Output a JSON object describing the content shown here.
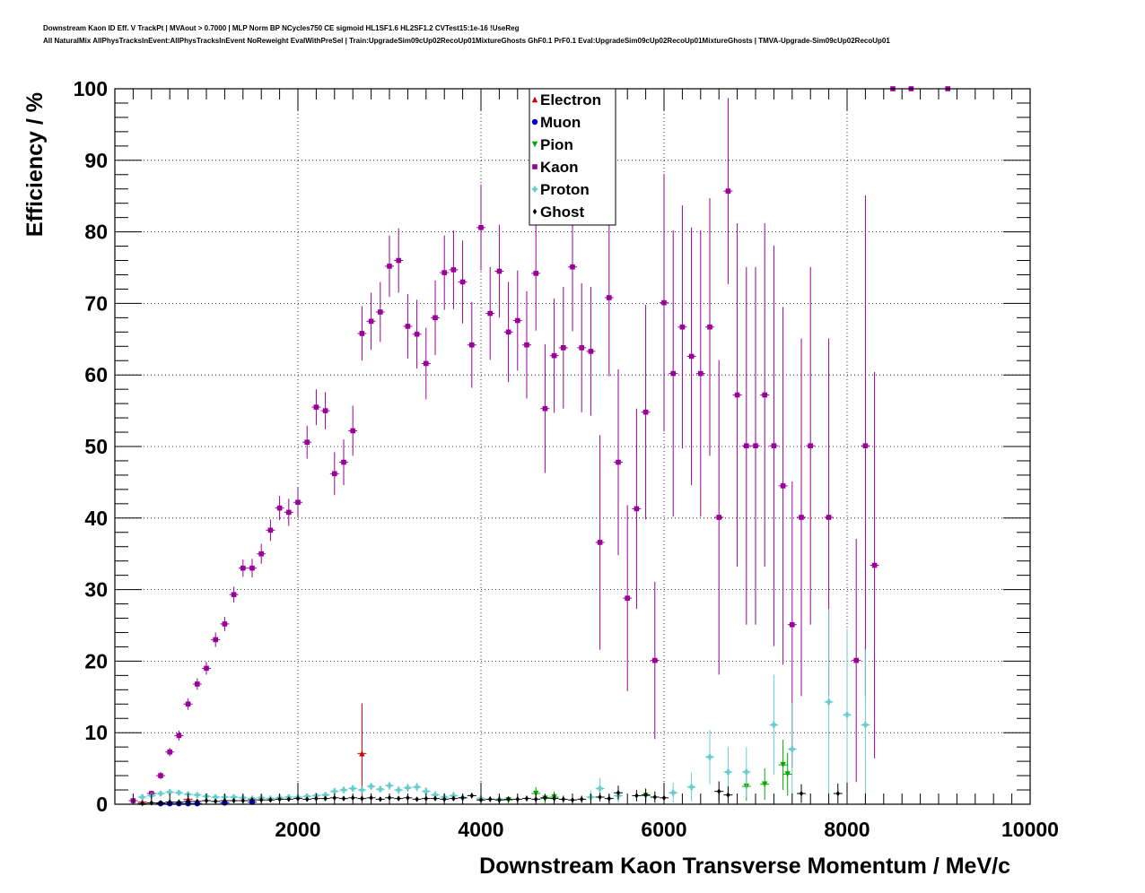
{
  "title_line_1": "Downstream Kaon ID Eff. V TrackPt | MVAout > 0.7000 | MLP Norm BP NCycles750 CE sigmoid HL1SF1.6 HL2SF1.2 CVTest15:1e-16 !UseReg",
  "title_line_2": "All NaturalMix AllPhysTracksInEvent:AllPhysTracksInEvent NoReweight EvalWithPreSel | Train:UpgradeSim09cUp02RecoUp01MixtureGhosts GhF0.1 PrF0.1 Eval:UpgradeSim09cUp02RecoUp01MixtureGhosts | TMVA-Upgrade-Sim09cUp02RecoUp01",
  "chart_data": {
    "type": "scatter",
    "xlabel": "Downstream Kaon Transverse Momentum / MeV/c",
    "ylabel": "Efficiency / %",
    "xlim": [
      0,
      10000
    ],
    "ylim": [
      0,
      100
    ],
    "x_ticks": [
      2000,
      4000,
      6000,
      8000,
      10000
    ],
    "y_ticks": [
      0,
      10,
      20,
      30,
      40,
      50,
      60,
      70,
      80,
      90,
      100
    ],
    "grid": true,
    "legend_position": "top-center",
    "series": [
      {
        "name": "Electron",
        "color": "#cc0000",
        "marker": "triangle-up",
        "points": [
          [
            300,
            0.3,
            0.3
          ],
          [
            800,
            0.7,
            0.6
          ],
          [
            2700,
            7.1,
            7.0
          ]
        ]
      },
      {
        "name": "Muon",
        "color": "#0000dd",
        "marker": "circle",
        "points": [
          [
            500,
            0.1,
            0.1
          ],
          [
            600,
            0.1,
            0.1
          ],
          [
            700,
            0.1,
            0.1
          ],
          [
            800,
            0.1,
            0.1
          ],
          [
            900,
            0.1,
            0.1
          ],
          [
            1200,
            0.2,
            0.2
          ],
          [
            1500,
            0.3,
            0.3
          ]
        ]
      },
      {
        "name": "Pion",
        "color": "#00aa00",
        "marker": "triangle-down",
        "points": [
          [
            4300,
            0.6,
            0.5
          ],
          [
            4600,
            1.5,
            0.9
          ],
          [
            4700,
            0.8,
            0.7
          ],
          [
            4800,
            1.0,
            0.8
          ],
          [
            5800,
            1.2,
            0.9
          ],
          [
            6900,
            2.5,
            2.0
          ],
          [
            7100,
            2.8,
            2.2
          ],
          [
            7300,
            5.5,
            3.5
          ],
          [
            7350,
            4.2,
            3.0
          ]
        ]
      },
      {
        "name": "Kaon",
        "color": "#990099",
        "marker": "square",
        "points": [
          [
            200,
            0.5,
            0.3
          ],
          [
            400,
            1.5,
            0.4
          ],
          [
            500,
            4.0,
            0.5
          ],
          [
            600,
            7.3,
            0.6
          ],
          [
            700,
            9.6,
            0.7
          ],
          [
            800,
            14.0,
            0.8
          ],
          [
            900,
            16.8,
            0.8
          ],
          [
            1000,
            19.0,
            0.9
          ],
          [
            1100,
            23.0,
            1.0
          ],
          [
            1200,
            25.2,
            1.0
          ],
          [
            1300,
            29.3,
            1.1
          ],
          [
            1400,
            33.0,
            1.2
          ],
          [
            1500,
            33.0,
            1.3
          ],
          [
            1600,
            35.0,
            1.4
          ],
          [
            1700,
            38.3,
            1.5
          ],
          [
            1800,
            41.4,
            1.7
          ],
          [
            1900,
            40.8,
            1.9
          ],
          [
            2000,
            42.2,
            2.1
          ],
          [
            2100,
            50.6,
            2.3
          ],
          [
            2200,
            55.5,
            2.5
          ],
          [
            2300,
            55.0,
            2.6
          ],
          [
            2400,
            46.2,
            3.0
          ],
          [
            2500,
            47.8,
            3.2
          ],
          [
            2600,
            52.2,
            3.5
          ],
          [
            2700,
            65.8,
            3.8
          ],
          [
            2800,
            67.5,
            4.0
          ],
          [
            2900,
            68.8,
            4.2
          ],
          [
            3000,
            75.2,
            4.3
          ],
          [
            3100,
            76.0,
            4.5
          ],
          [
            3200,
            66.8,
            4.5
          ],
          [
            3300,
            65.7,
            4.8
          ],
          [
            3400,
            61.6,
            5.0
          ],
          [
            3500,
            68.0,
            5.2
          ],
          [
            3600,
            74.3,
            5.2
          ],
          [
            3700,
            74.7,
            5.5
          ],
          [
            3800,
            73.0,
            5.8
          ],
          [
            3900,
            64.2,
            6.0
          ],
          [
            4000,
            80.6,
            6.0
          ],
          [
            4100,
            68.6,
            6.5
          ],
          [
            4200,
            74.5,
            6.5
          ],
          [
            4300,
            66.0,
            7.0
          ],
          [
            4400,
            67.6,
            7.0
          ],
          [
            4500,
            64.2,
            7.5
          ],
          [
            4600,
            74.2,
            8.0
          ],
          [
            4700,
            55.3,
            9.0
          ],
          [
            4800,
            62.7,
            8.0
          ],
          [
            4900,
            63.8,
            8.5
          ],
          [
            5000,
            75.1,
            9.0
          ],
          [
            5100,
            63.8,
            9.0
          ],
          [
            5200,
            63.3,
            9.0
          ],
          [
            5300,
            36.6,
            15.0
          ],
          [
            5400,
            70.8,
            11.0
          ],
          [
            5500,
            47.8,
            13.0
          ],
          [
            5600,
            28.8,
            13.0
          ],
          [
            5700,
            41.3,
            14.0
          ],
          [
            5800,
            54.8,
            15.0
          ],
          [
            5900,
            20.1,
            11.0
          ],
          [
            6000,
            70.1,
            18.0
          ],
          [
            6100,
            60.2,
            20.0
          ],
          [
            6200,
            66.7,
            17.0
          ],
          [
            6300,
            62.6,
            18.0
          ],
          [
            6400,
            60.2,
            20.0
          ],
          [
            6500,
            66.7,
            18.0
          ],
          [
            6600,
            40.1,
            22.0
          ],
          [
            6700,
            85.7,
            13.0
          ],
          [
            6800,
            57.2,
            24.0
          ],
          [
            6900,
            50.1,
            25.0
          ],
          [
            7000,
            50.1,
            25.0
          ],
          [
            7100,
            57.2,
            24.0
          ],
          [
            7200,
            50.1,
            28.0
          ],
          [
            7300,
            44.5,
            25.0
          ],
          [
            7400,
            25.1,
            20.0
          ],
          [
            7500,
            40.1,
            25.0
          ],
          [
            7600,
            50.1,
            25.0
          ],
          [
            7800,
            40.1,
            25.0
          ],
          [
            8100,
            20.1,
            17.0
          ],
          [
            8200,
            50.1,
            35.0
          ],
          [
            8300,
            33.4,
            27.0
          ],
          [
            8500,
            100,
            0
          ],
          [
            8700,
            100,
            0
          ],
          [
            9100,
            100,
            0
          ]
        ]
      },
      {
        "name": "Proton",
        "color": "#66cccc",
        "marker": "cross",
        "points": [
          [
            300,
            1.0,
            0.3
          ],
          [
            400,
            1.2,
            0.3
          ],
          [
            500,
            1.5,
            0.3
          ],
          [
            600,
            1.7,
            0.3
          ],
          [
            700,
            1.6,
            0.3
          ],
          [
            800,
            1.4,
            0.3
          ],
          [
            900,
            1.3,
            0.3
          ],
          [
            1000,
            1.1,
            0.3
          ],
          [
            1100,
            1.0,
            0.3
          ],
          [
            1200,
            1.0,
            0.3
          ],
          [
            1300,
            1.0,
            0.3
          ],
          [
            1400,
            0.9,
            0.3
          ],
          [
            1500,
            0.8,
            0.3
          ],
          [
            1600,
            0.9,
            0.3
          ],
          [
            1700,
            0.8,
            0.3
          ],
          [
            1800,
            0.9,
            0.3
          ],
          [
            1900,
            1.0,
            0.4
          ],
          [
            2000,
            1.0,
            0.4
          ],
          [
            2100,
            1.1,
            0.4
          ],
          [
            2200,
            1.2,
            0.4
          ],
          [
            2300,
            1.3,
            0.4
          ],
          [
            2400,
            1.8,
            0.5
          ],
          [
            2500,
            2.0,
            0.5
          ],
          [
            2600,
            2.2,
            0.5
          ],
          [
            2700,
            2.0,
            0.5
          ],
          [
            2800,
            2.5,
            0.5
          ],
          [
            2900,
            2.1,
            0.5
          ],
          [
            3000,
            2.6,
            0.6
          ],
          [
            3100,
            2.0,
            0.6
          ],
          [
            3200,
            2.3,
            0.6
          ],
          [
            3300,
            2.4,
            0.6
          ],
          [
            3400,
            1.8,
            0.6
          ],
          [
            3500,
            1.3,
            0.6
          ],
          [
            3600,
            1.0,
            0.6
          ],
          [
            3700,
            1.2,
            0.6
          ],
          [
            3800,
            0.9,
            0.6
          ],
          [
            4000,
            0.8,
            0.6
          ],
          [
            4200,
            0.7,
            0.6
          ],
          [
            5200,
            1.0,
            0.9
          ],
          [
            5300,
            2.2,
            1.5
          ],
          [
            5500,
            1.2,
            1.0
          ],
          [
            6100,
            1.6,
            1.4
          ],
          [
            6300,
            2.4,
            2.0
          ],
          [
            6500,
            6.6,
            3.8
          ],
          [
            6700,
            4.5,
            3.5
          ],
          [
            6900,
            4.5,
            3.5
          ],
          [
            7200,
            11.1,
            7.0
          ],
          [
            7400,
            7.7,
            6.5
          ],
          [
            7800,
            14.3,
            13.0
          ],
          [
            8000,
            12.5,
            12.0
          ],
          [
            8200,
            11.1,
            10.5
          ]
        ]
      },
      {
        "name": "Ghost",
        "color": "#000000",
        "marker": "diamond",
        "points": [
          [
            300,
            0.1,
            0.1
          ],
          [
            400,
            0.2,
            0.1
          ],
          [
            500,
            0.2,
            0.1
          ],
          [
            600,
            0.3,
            0.1
          ],
          [
            700,
            0.3,
            0.1
          ],
          [
            800,
            0.4,
            0.1
          ],
          [
            900,
            0.4,
            0.1
          ],
          [
            1000,
            0.5,
            0.1
          ],
          [
            1100,
            0.4,
            0.1
          ],
          [
            1200,
            0.5,
            0.1
          ],
          [
            1300,
            0.5,
            0.1
          ],
          [
            1400,
            0.5,
            0.1
          ],
          [
            1500,
            0.6,
            0.1
          ],
          [
            1600,
            0.6,
            0.2
          ],
          [
            1700,
            0.6,
            0.2
          ],
          [
            1800,
            0.7,
            0.2
          ],
          [
            1900,
            0.7,
            0.2
          ],
          [
            2000,
            0.8,
            0.2
          ],
          [
            2100,
            0.7,
            0.2
          ],
          [
            2200,
            0.8,
            0.2
          ],
          [
            2300,
            0.8,
            0.2
          ],
          [
            2400,
            0.9,
            0.2
          ],
          [
            2500,
            0.8,
            0.2
          ],
          [
            2600,
            0.9,
            0.2
          ],
          [
            2700,
            0.8,
            0.3
          ],
          [
            2800,
            0.9,
            0.3
          ],
          [
            2900,
            0.7,
            0.3
          ],
          [
            3000,
            0.9,
            0.3
          ],
          [
            3100,
            0.8,
            0.3
          ],
          [
            3200,
            0.9,
            0.3
          ],
          [
            3300,
            0.7,
            0.3
          ],
          [
            3400,
            0.8,
            0.3
          ],
          [
            3500,
            0.8,
            0.3
          ],
          [
            3600,
            0.7,
            0.3
          ],
          [
            3700,
            0.8,
            0.3
          ],
          [
            3800,
            0.9,
            0.4
          ],
          [
            3900,
            1.2,
            0.4
          ],
          [
            4000,
            0.6,
            0.4
          ],
          [
            4100,
            0.7,
            0.4
          ],
          [
            4200,
            0.6,
            0.4
          ],
          [
            4300,
            0.7,
            0.4
          ],
          [
            4400,
            0.7,
            0.4
          ],
          [
            4500,
            0.8,
            0.4
          ],
          [
            4600,
            0.7,
            0.4
          ],
          [
            4700,
            0.9,
            0.5
          ],
          [
            4800,
            0.8,
            0.5
          ],
          [
            4900,
            0.7,
            0.5
          ],
          [
            5000,
            0.6,
            0.5
          ],
          [
            5100,
            0.7,
            0.5
          ],
          [
            5300,
            1.0,
            0.6
          ],
          [
            5400,
            0.8,
            0.6
          ],
          [
            5500,
            1.6,
            1.0
          ],
          [
            5700,
            1.2,
            0.8
          ],
          [
            5800,
            1.3,
            0.9
          ],
          [
            5900,
            1.0,
            0.8
          ],
          [
            6000,
            0.9,
            0.8
          ],
          [
            6600,
            1.8,
            1.4
          ],
          [
            6700,
            1.3,
            1.2
          ],
          [
            7500,
            1.5,
            1.3
          ],
          [
            7900,
            1.5,
            1.4
          ]
        ]
      }
    ]
  }
}
